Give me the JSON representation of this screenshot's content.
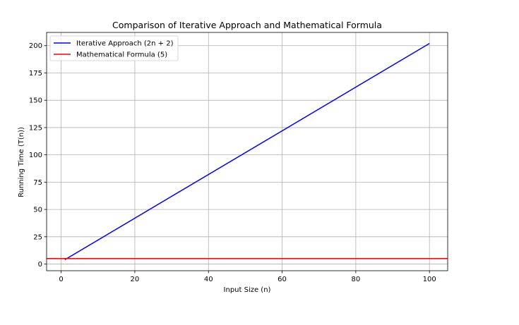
{
  "chart_data": {
    "type": "line",
    "title": "Comparison of Iterative Approach and Mathematical Formula",
    "xlabel": "Input Size (n)",
    "ylabel": "Running Time (T(n))",
    "xlim": [
      -3.95,
      104.95
    ],
    "ylim": [
      -6.1,
      212.1
    ],
    "xticks": [
      0,
      20,
      40,
      60,
      80,
      100
    ],
    "yticks": [
      0,
      25,
      50,
      75,
      100,
      125,
      150,
      175,
      200
    ],
    "grid": true,
    "legend_position": "upper-left",
    "series": [
      {
        "name": "Iterative Approach (2n + 2)",
        "color": "#0000ff",
        "kind": "line",
        "x": [
          1,
          100
        ],
        "y": [
          4,
          202
        ]
      },
      {
        "name": "Mathematical Formula (5)",
        "color": "#ff0000",
        "kind": "hline",
        "y": 5
      }
    ]
  }
}
